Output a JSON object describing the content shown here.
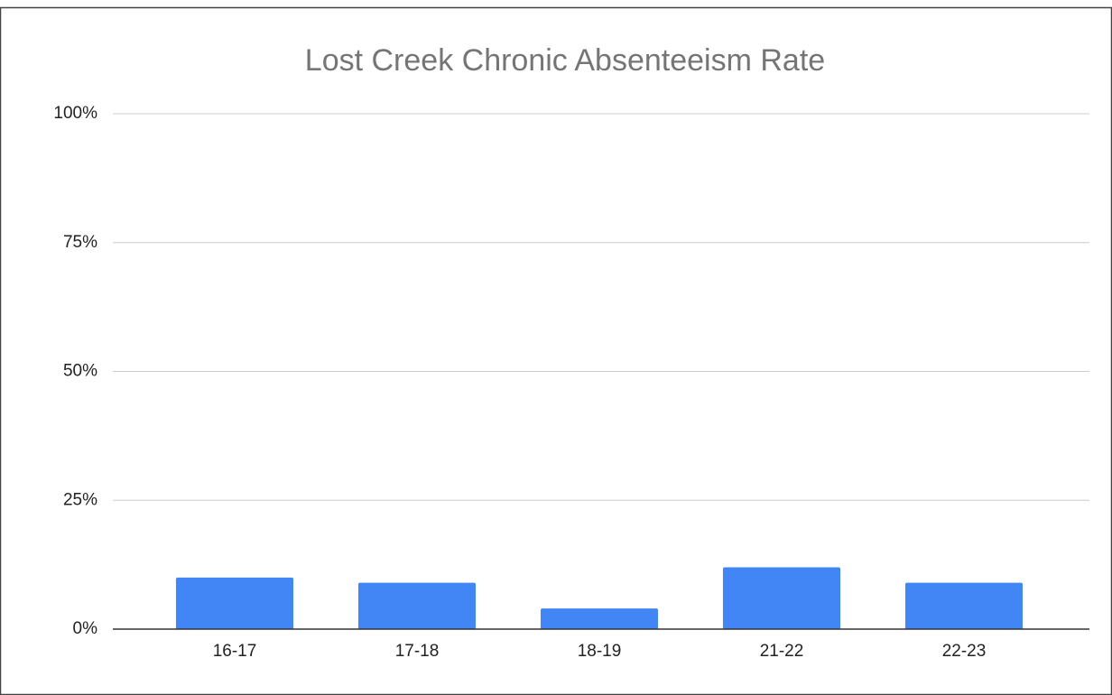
{
  "chart_data": {
    "type": "bar",
    "title": "Lost Creek Chronic Absenteeism Rate",
    "categories": [
      "16-17",
      "17-18",
      "18-19",
      "21-22",
      "22-23"
    ],
    "values": [
      10,
      9,
      4,
      12,
      9
    ],
    "color": "#4285f4",
    "ylim": [
      0,
      100
    ],
    "yticks": [
      {
        "value": 0,
        "label": "0%"
      },
      {
        "value": 25,
        "label": "25%"
      },
      {
        "value": 50,
        "label": "50%"
      },
      {
        "value": 75,
        "label": "75%"
      },
      {
        "value": 100,
        "label": "100%"
      }
    ],
    "grid": true
  }
}
